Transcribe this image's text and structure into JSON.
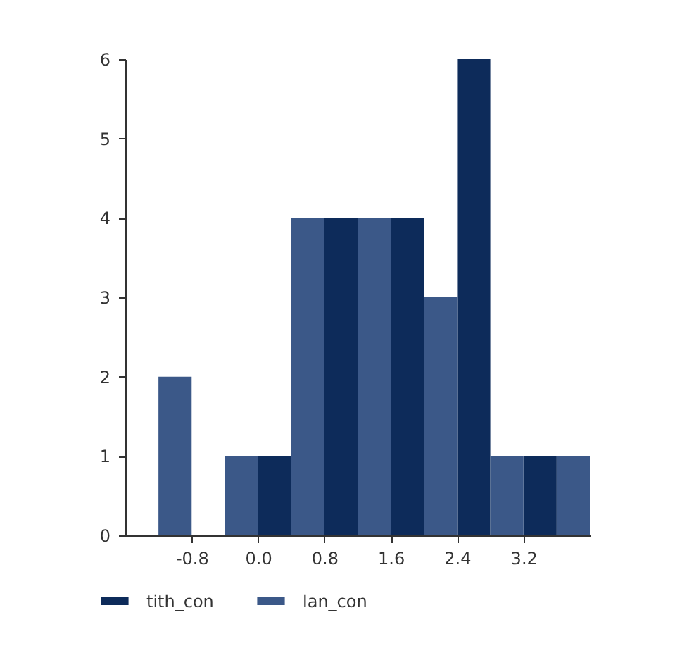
{
  "chart_data": {
    "type": "histogram",
    "bins": [
      -1.2,
      -0.8,
      -0.4,
      0.0,
      0.4,
      0.8,
      1.2,
      1.6,
      2.0,
      2.4,
      2.8,
      3.2,
      3.6,
      4.0
    ],
    "series": [
      {
        "name": "tith_con",
        "color": "#0d2b5a",
        "values": [
          null,
          0,
          null,
          1,
          null,
          4,
          null,
          4,
          null,
          6,
          null,
          1,
          null
        ]
      },
      {
        "name": "lan_con",
        "color": "#3b5888",
        "values": [
          2,
          null,
          1,
          null,
          4,
          null,
          4,
          null,
          3,
          null,
          1,
          null,
          1
        ]
      }
    ],
    "xlim": [
      -1.6,
      4.0
    ],
    "xticks": [
      {
        "value": -0.8,
        "label": "-0.8"
      },
      {
        "value": 0,
        "label": "0.0"
      },
      {
        "value": 0.8,
        "label": "0.8"
      },
      {
        "value": 1.6,
        "label": "1.6"
      },
      {
        "value": 2.4,
        "label": "2.4"
      },
      {
        "value": 3.2,
        "label": "3.2"
      }
    ],
    "ylim": [
      0,
      6
    ],
    "yticks": [
      0,
      1,
      2,
      3,
      4,
      5,
      6
    ],
    "grid": false,
    "legend": "bottom"
  }
}
